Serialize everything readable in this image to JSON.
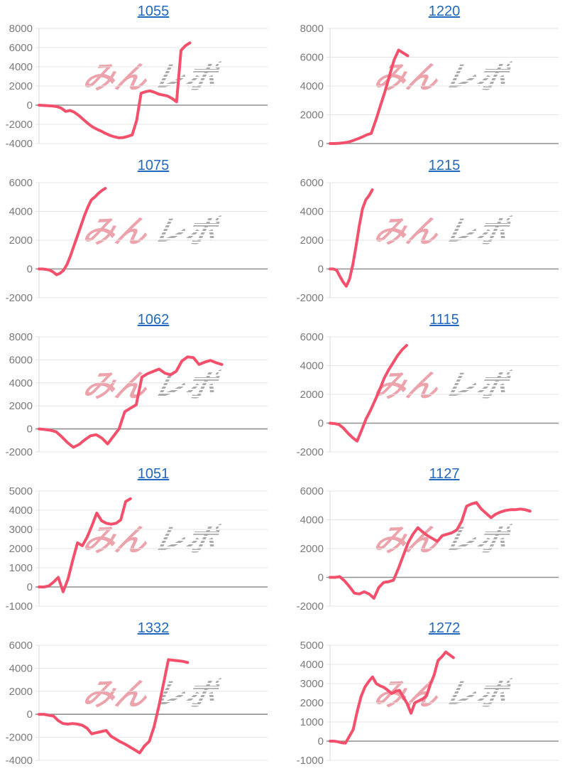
{
  "page": {
    "background": "#ffffff"
  },
  "watermark": {
    "pink_text": "みん",
    "gray_text": "レポ",
    "pink_color": "#eda3ab",
    "gray_color": "#ababab"
  },
  "style": {
    "line_color": "#f4506c",
    "grid_color": "#e4e4e4",
    "zero_line_color": "#8f8f8f",
    "axis_color": "#d8d8d8",
    "label_color": "#7a7a7a",
    "title_color": "#2268bd"
  },
  "chart_data": [
    {
      "type": "line",
      "title": "1055",
      "xlabel": "",
      "ylabel": "",
      "ylim": [
        -4000,
        8000
      ],
      "ytick_step": 2000,
      "yticks": [
        8000,
        6000,
        4000,
        2000,
        0,
        -2000,
        -4000
      ],
      "grid": true,
      "legend": "none",
      "x_end": 0.66,
      "values": [
        0,
        -30,
        -50,
        -80,
        -150,
        -300,
        -650,
        -550,
        -750,
        -1100,
        -1500,
        -1900,
        -2250,
        -2500,
        -2700,
        -2950,
        -3150,
        -3300,
        -3400,
        -3380,
        -3250,
        -3100,
        -1600,
        1250,
        1400,
        1500,
        1350,
        1150,
        1050,
        950,
        700,
        350,
        5700,
        6200,
        6500
      ]
    },
    {
      "type": "line",
      "title": "1220",
      "xlabel": "",
      "ylabel": "",
      "ylim": [
        0,
        8000
      ],
      "ytick_step": 2000,
      "yticks": [
        8000,
        6000,
        4000,
        2000,
        0
      ],
      "grid": true,
      "legend": "none",
      "x_end": 0.34,
      "values": [
        0,
        0,
        20,
        50,
        100,
        200,
        320,
        450,
        600,
        700,
        1600,
        2600,
        3600,
        4700,
        5800,
        6500,
        6300,
        6100
      ]
    },
    {
      "type": "line",
      "title": "1075",
      "xlabel": "",
      "ylabel": "",
      "ylim": [
        -2000,
        6000
      ],
      "ytick_step": 2000,
      "yticks": [
        6000,
        4000,
        2000,
        0,
        -2000
      ],
      "grid": true,
      "legend": "none",
      "x_end": 0.29,
      "values": [
        0,
        0,
        -30,
        -80,
        -200,
        -400,
        -300,
        -100,
        300,
        900,
        1600,
        2300,
        3000,
        3700,
        4300,
        4800,
        5000,
        5250,
        5450,
        5600
      ]
    },
    {
      "type": "line",
      "title": "1215",
      "xlabel": "",
      "ylabel": "",
      "ylim": [
        -2000,
        6000
      ],
      "ytick_step": 2000,
      "yticks": [
        6000,
        4000,
        2000,
        0,
        -2000
      ],
      "grid": true,
      "legend": "none",
      "x_end": 0.185,
      "values": [
        0,
        0,
        -80,
        -500,
        -900,
        -1200,
        -700,
        300,
        1600,
        3000,
        4200,
        4800,
        5100,
        5500
      ]
    },
    {
      "type": "line",
      "title": "1062",
      "xlabel": "",
      "ylabel": "",
      "ylim": [
        -2000,
        8000
      ],
      "ytick_step": 2000,
      "yticks": [
        8000,
        6000,
        4000,
        2000,
        0,
        -2000
      ],
      "grid": true,
      "legend": "none",
      "x_end": 0.8,
      "values": [
        0,
        -50,
        -120,
        -250,
        -700,
        -1200,
        -1600,
        -1350,
        -950,
        -600,
        -500,
        -800,
        -1300,
        -650,
        0,
        1500,
        1800,
        2100,
        4500,
        4800,
        5000,
        5200,
        4850,
        4700,
        5000,
        5900,
        6250,
        6200,
        5600,
        5800,
        5950,
        5750,
        5600
      ]
    },
    {
      "type": "line",
      "title": "1115",
      "xlabel": "",
      "ylabel": "",
      "ylim": [
        -2000,
        6000
      ],
      "ytick_step": 2000,
      "yticks": [
        6000,
        4000,
        2000,
        0,
        -2000
      ],
      "grid": true,
      "legend": "none",
      "x_end": 0.335,
      "values": [
        0,
        -30,
        -100,
        -350,
        -700,
        -1000,
        -1250,
        -500,
        300,
        900,
        1600,
        2300,
        3100,
        3700,
        4200,
        4700,
        5100,
        5400
      ]
    },
    {
      "type": "line",
      "title": "1051",
      "xlabel": "",
      "ylabel": "",
      "ylim": [
        -1000,
        5000
      ],
      "ytick_step": 1000,
      "yticks": [
        5000,
        4000,
        3000,
        2000,
        1000,
        0,
        -1000
      ],
      "grid": true,
      "legend": "none",
      "x_end": 0.4,
      "values": [
        0,
        0,
        50,
        250,
        500,
        -250,
        400,
        1400,
        2300,
        2150,
        2600,
        3200,
        3850,
        3450,
        3320,
        3270,
        3320,
        3500,
        4450,
        4600
      ]
    },
    {
      "type": "line",
      "title": "1127",
      "xlabel": "",
      "ylabel": "",
      "ylim": [
        -2000,
        6000
      ],
      "ytick_step": 2000,
      "yticks": [
        6000,
        4000,
        2000,
        0,
        -2000
      ],
      "grid": true,
      "legend": "none",
      "x_end": 0.875,
      "values": [
        0,
        0,
        50,
        -250,
        -650,
        -1100,
        -1150,
        -1000,
        -1150,
        -1450,
        -700,
        -350,
        -300,
        -200,
        600,
        1500,
        2400,
        3000,
        3450,
        3150,
        2900,
        2700,
        2500,
        2900,
        3000,
        3100,
        3300,
        3900,
        4950,
        5100,
        5200,
        4750,
        4450,
        4150,
        4400,
        4550,
        4650,
        4700,
        4700,
        4750,
        4700,
        4600
      ]
    },
    {
      "type": "line",
      "title": "1332",
      "xlabel": "",
      "ylabel": "",
      "ylim": [
        -4000,
        6000
      ],
      "ytick_step": 2000,
      "yticks": [
        6000,
        4000,
        2000,
        0,
        -2000,
        -4000
      ],
      "grid": true,
      "legend": "none",
      "x_end": 0.65,
      "values": [
        0,
        0,
        -80,
        -150,
        -550,
        -800,
        -850,
        -800,
        -850,
        -950,
        -1200,
        -1700,
        -1600,
        -1500,
        -1400,
        -1900,
        -2150,
        -2400,
        -2600,
        -2850,
        -3100,
        -3350,
        -2750,
        -2350,
        -1100,
        700,
        2700,
        4750,
        4700,
        4650,
        4600,
        4500
      ]
    },
    {
      "type": "line",
      "title": "1272",
      "xlabel": "",
      "ylabel": "",
      "ylim": [
        -1000,
        5000
      ],
      "ytick_step": 1000,
      "yticks": [
        5000,
        4000,
        3000,
        2000,
        1000,
        0,
        -1000
      ],
      "grid": true,
      "legend": "none",
      "x_end": 0.54,
      "values": [
        0,
        0,
        -30,
        -80,
        -100,
        250,
        600,
        1500,
        2300,
        2800,
        3100,
        3350,
        3000,
        2880,
        2800,
        2650,
        2480,
        2600,
        2650,
        2300,
        1950,
        1450,
        2000,
        2100,
        2200,
        2350,
        2950,
        3450,
        4200,
        4400,
        4650,
        4500,
        4350
      ]
    }
  ]
}
